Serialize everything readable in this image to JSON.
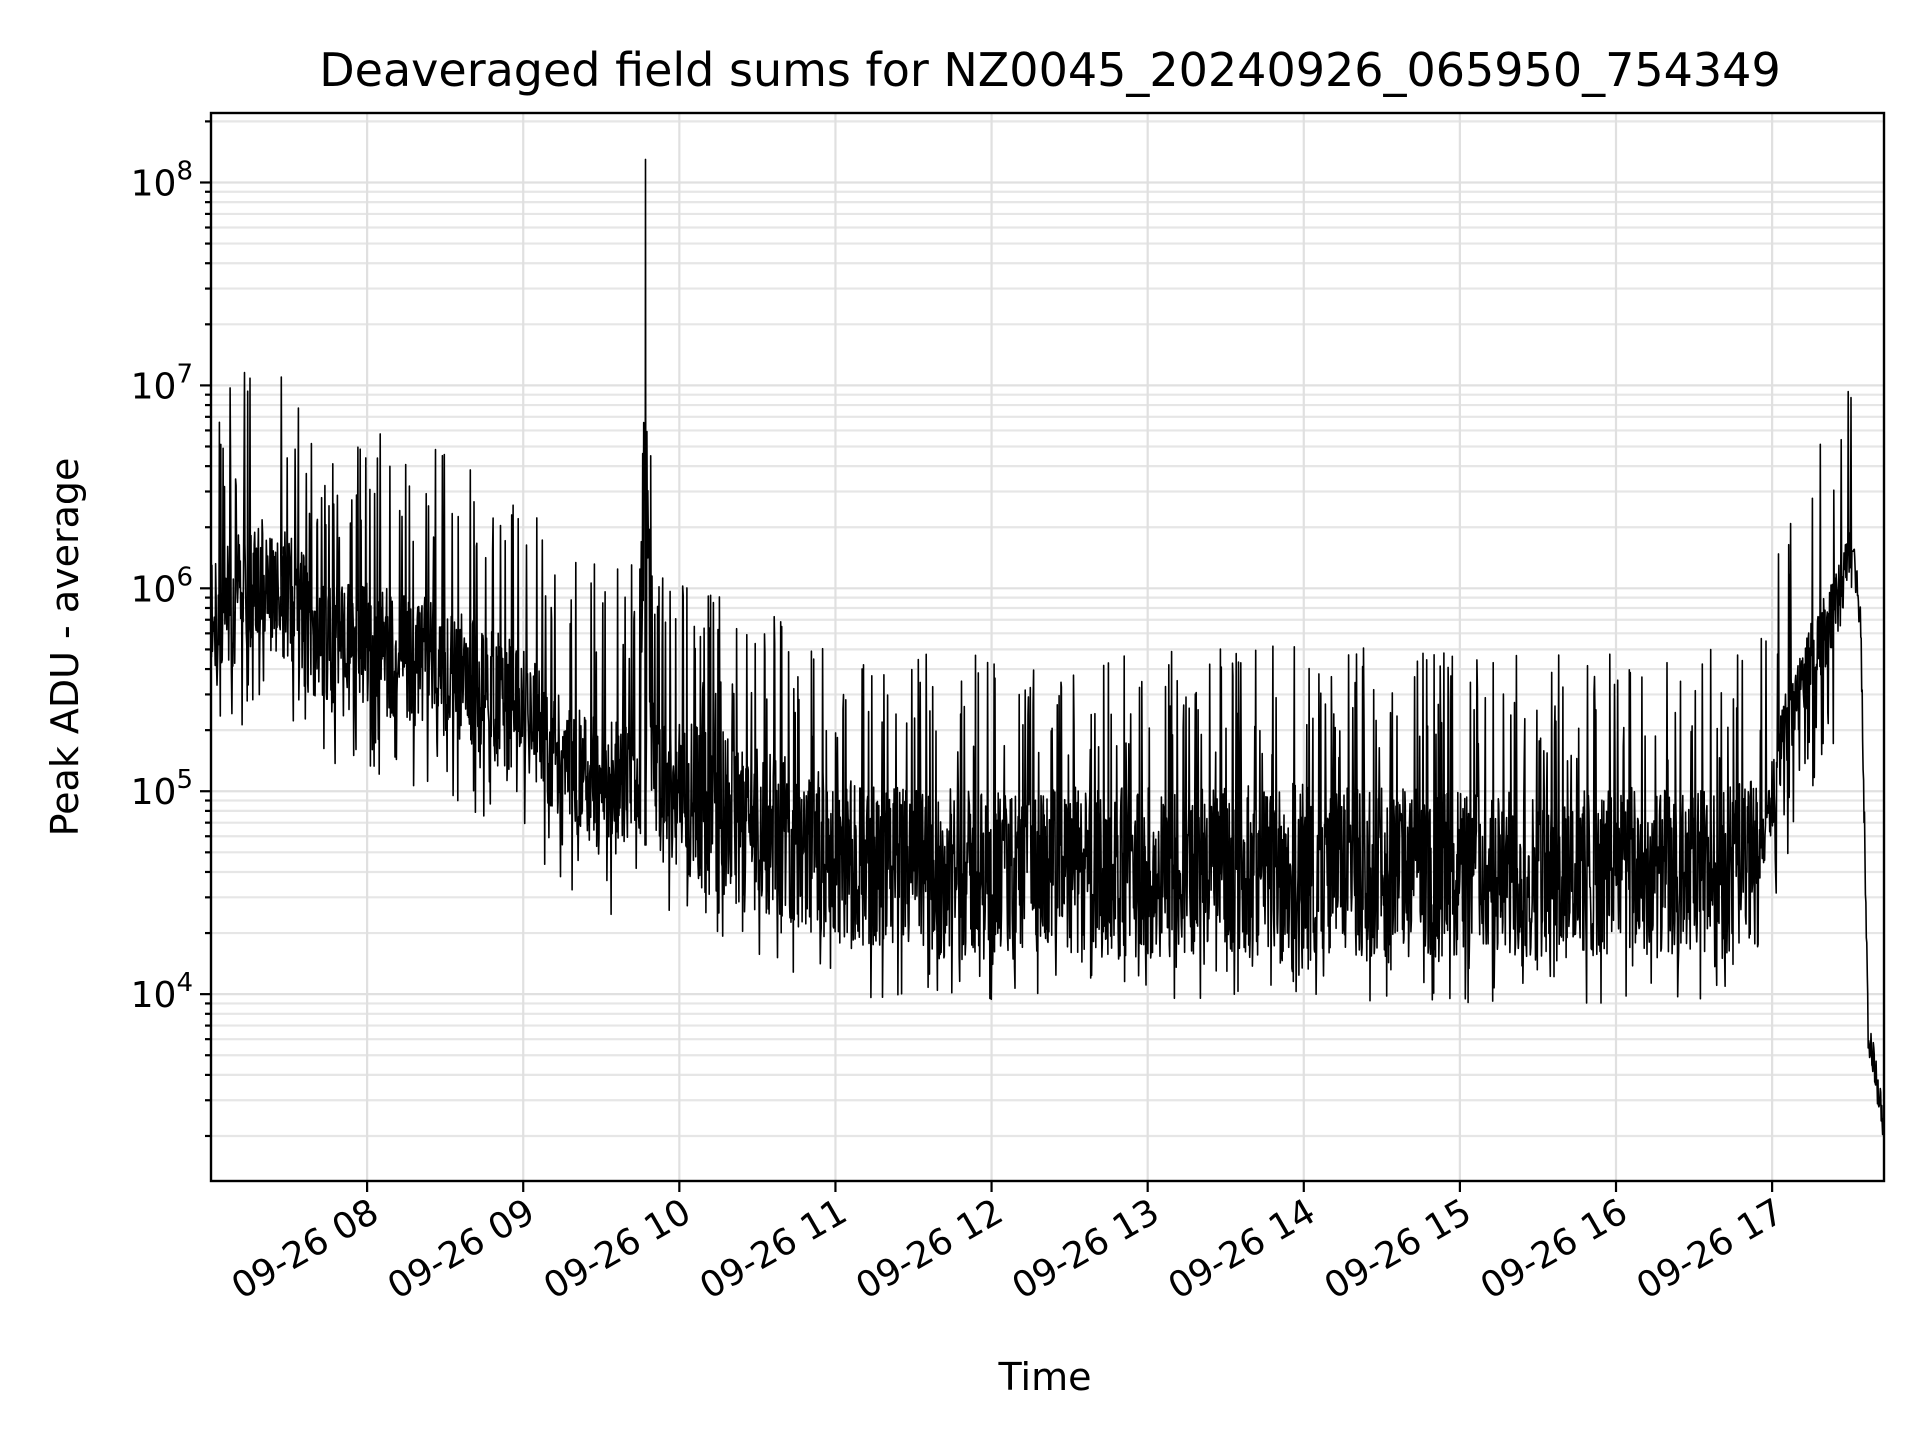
{
  "chart_data": {
    "type": "line",
    "title": "Deaveraged field sums for NZ0045_20240926_065950_754349",
    "xlabel": "Time",
    "ylabel": "Peak ADU - average",
    "yscale": "log",
    "grid": true,
    "line_color": "#000000",
    "xlim": [
      "09-26 07:00",
      "09-26 17:43"
    ],
    "ylim": [
      1200,
      220000000
    ],
    "x_ticks": [
      "09-26 08",
      "09-26 09",
      "09-26 10",
      "09-26 11",
      "09-26 12",
      "09-26 13",
      "09-26 14",
      "09-26 15",
      "09-26 16",
      "09-26 17"
    ],
    "y_ticks": [
      {
        "value": 10000,
        "base": "10",
        "exp": "4"
      },
      {
        "value": 100000,
        "base": "10",
        "exp": "5"
      },
      {
        "value": 1000000,
        "base": "10",
        "exp": "6"
      },
      {
        "value": 10000000,
        "base": "10",
        "exp": "7"
      },
      {
        "value": 100000000,
        "base": "10",
        "exp": "8"
      }
    ],
    "series": [
      {
        "x": [
          "09-26 07:00",
          "09-26 07:10",
          "09-26 07:20",
          "09-26 07:25",
          "09-26 07:27",
          "09-26 07:29",
          "09-26 07:35",
          "09-26 07:45",
          "09-26 08:00",
          "09-26 08:15",
          "09-26 08:30",
          "09-26 08:45",
          "09-26 09:00",
          "09-26 09:15",
          "09-26 09:30",
          "09-26 09:45",
          "09-26 09:47",
          "09-26 09:48",
          "09-26 09:49",
          "09-26 09:51",
          "09-26 10:00",
          "09-26 10:20",
          "09-26 10:40",
          "09-26 11:00",
          "09-26 11:30",
          "09-26 12:00",
          "09-26 12:30",
          "09-26 13:00",
          "09-26 13:30",
          "09-26 14:00",
          "09-26 14:30",
          "09-26 15:00",
          "09-26 15:30",
          "09-26 16:00",
          "09-26 16:30",
          "09-26 16:55",
          "09-26 17:05",
          "09-26 17:15",
          "09-26 17:25",
          "09-26 17:31",
          "09-26 17:34",
          "09-26 17:37",
          "09-26 17:40",
          "09-26 17:43"
        ],
        "values": [
          600000,
          900000,
          1100000,
          1000000,
          11000000,
          900000,
          700000,
          500000,
          500000,
          450000,
          400000,
          300000,
          250000,
          150000,
          100000,
          110000,
          130000000,
          4500000,
          150000,
          110000,
          90000,
          75000,
          60000,
          45000,
          40000,
          38000,
          40000,
          40000,
          40000,
          42000,
          40000,
          40000,
          38000,
          40000,
          38000,
          45000,
          200000,
          450000,
          800000,
          1600000,
          700000,
          6000,
          4000,
          2000
        ]
      }
    ]
  }
}
